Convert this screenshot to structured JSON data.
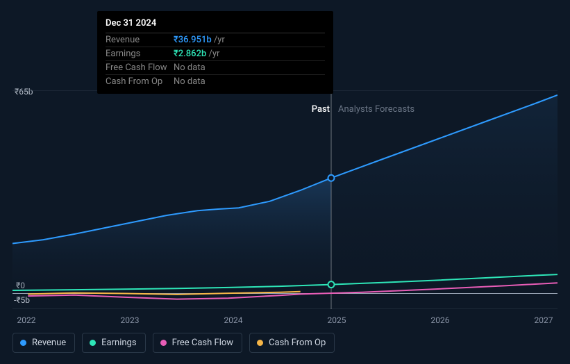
{
  "tooltip": {
    "date": "Dec 31 2024",
    "rows": [
      {
        "label": "Revenue",
        "value": "₹36.951b",
        "suffix": "/yr",
        "color": "#2e9bff",
        "hasData": true
      },
      {
        "label": "Earnings",
        "value": "₹2.862b",
        "suffix": "/yr",
        "color": "#2ee6b8",
        "hasData": true
      },
      {
        "label": "Free Cash Flow",
        "value": "No data",
        "suffix": "",
        "color": "#888888",
        "hasData": false
      },
      {
        "label": "Cash From Op",
        "value": "No data",
        "suffix": "",
        "color": "#888888",
        "hasData": false
      }
    ]
  },
  "chart": {
    "type": "line",
    "background": "#0d1826",
    "grid_color": "#2a3848",
    "zero_line_color": "#9aa4b5",
    "font_color": "#b8c0cc",
    "ylim": [
      -5,
      65
    ],
    "y_ticks": [
      {
        "v": 65,
        "label": "₹65b"
      },
      {
        "v": 0,
        "label": "₹0"
      },
      {
        "v": -5,
        "label": "-₹5b"
      }
    ],
    "x_years": [
      "2022",
      "2023",
      "2024",
      "2025",
      "2026",
      "2027"
    ],
    "cursor_x": 2024.999,
    "periods": {
      "past_label": "Past",
      "forecast_label": "Analysts Forecasts"
    },
    "series": [
      {
        "name": "Revenue",
        "color": "#2e9bff",
        "points": [
          [
            2021.9,
            16.0
          ],
          [
            2022.2,
            17.2
          ],
          [
            2022.5,
            19.0
          ],
          [
            2022.8,
            21.0
          ],
          [
            2023.1,
            23.0
          ],
          [
            2023.4,
            25.0
          ],
          [
            2023.7,
            26.5
          ],
          [
            2023.9,
            27.0
          ],
          [
            2024.1,
            27.4
          ],
          [
            2024.4,
            29.5
          ],
          [
            2024.7,
            33.0
          ],
          [
            2024.999,
            36.951
          ],
          [
            2025.5,
            43.0
          ],
          [
            2026.0,
            49.0
          ],
          [
            2026.5,
            55.0
          ],
          [
            2027.0,
            61.0
          ],
          [
            2027.2,
            63.5
          ]
        ],
        "marker_at": 2024.999
      },
      {
        "name": "Earnings",
        "color": "#2ee6b8",
        "points": [
          [
            2021.9,
            1.0
          ],
          [
            2022.5,
            1.2
          ],
          [
            2023.0,
            1.4
          ],
          [
            2023.5,
            1.6
          ],
          [
            2024.0,
            1.9
          ],
          [
            2024.5,
            2.3
          ],
          [
            2024.999,
            2.862
          ],
          [
            2025.5,
            3.5
          ],
          [
            2026.0,
            4.2
          ],
          [
            2026.5,
            5.0
          ],
          [
            2027.0,
            5.8
          ],
          [
            2027.2,
            6.1
          ]
        ],
        "marker_at": 2024.999
      },
      {
        "name": "Free Cash Flow",
        "color": "#e85db7",
        "points": [
          [
            2022.05,
            -0.8
          ],
          [
            2022.5,
            -0.5
          ],
          [
            2023.0,
            -1.2
          ],
          [
            2023.5,
            -1.8
          ],
          [
            2024.0,
            -1.5
          ],
          [
            2024.5,
            -0.6
          ],
          [
            2024.7,
            -0.2
          ],
          [
            2025.3,
            0.4
          ],
          [
            2026.0,
            1.4
          ],
          [
            2026.7,
            2.5
          ],
          [
            2027.2,
            3.4
          ]
        ]
      },
      {
        "name": "Cash From Op",
        "color": "#f5b547",
        "points": [
          [
            2022.05,
            -0.2
          ],
          [
            2022.5,
            0.2
          ],
          [
            2023.0,
            0.0
          ],
          [
            2023.5,
            -0.3
          ],
          [
            2024.0,
            0.1
          ],
          [
            2024.5,
            0.4
          ],
          [
            2024.7,
            0.6
          ]
        ]
      }
    ],
    "legend": [
      {
        "label": "Revenue",
        "color": "#2e9bff"
      },
      {
        "label": "Earnings",
        "color": "#2ee6b8"
      },
      {
        "label": "Free Cash Flow",
        "color": "#e85db7"
      },
      {
        "label": "Cash From Op",
        "color": "#f5b547"
      }
    ]
  }
}
